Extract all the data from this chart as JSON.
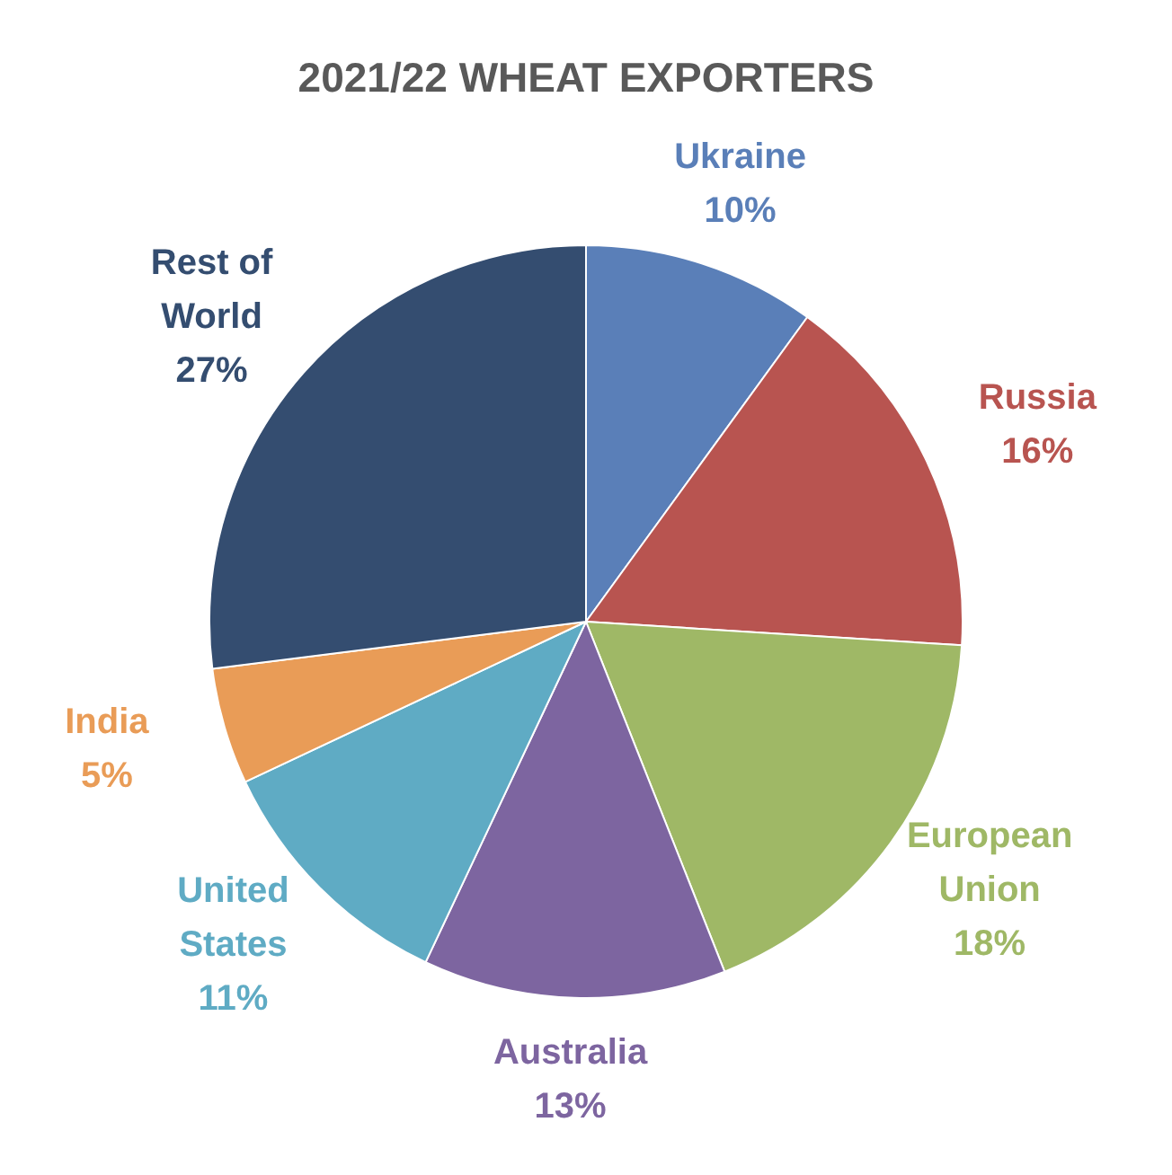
{
  "chart_data": {
    "type": "pie",
    "title": "2021/22 WHEAT EXPORTERS",
    "categories": [
      "Ukraine",
      "Russia",
      "European Union",
      "Australia",
      "United States",
      "India",
      "Rest of World"
    ],
    "values": [
      10,
      16,
      18,
      13,
      11,
      5,
      27
    ],
    "colors": [
      "#5a7fb8",
      "#b85450",
      "#9fb866",
      "#7d65a0",
      "#5fabc4",
      "#e99c57",
      "#344d70"
    ],
    "value_labels": [
      "10%",
      "16%",
      "18%",
      "13%",
      "11%",
      "5%",
      "27%"
    ],
    "legend": false
  }
}
